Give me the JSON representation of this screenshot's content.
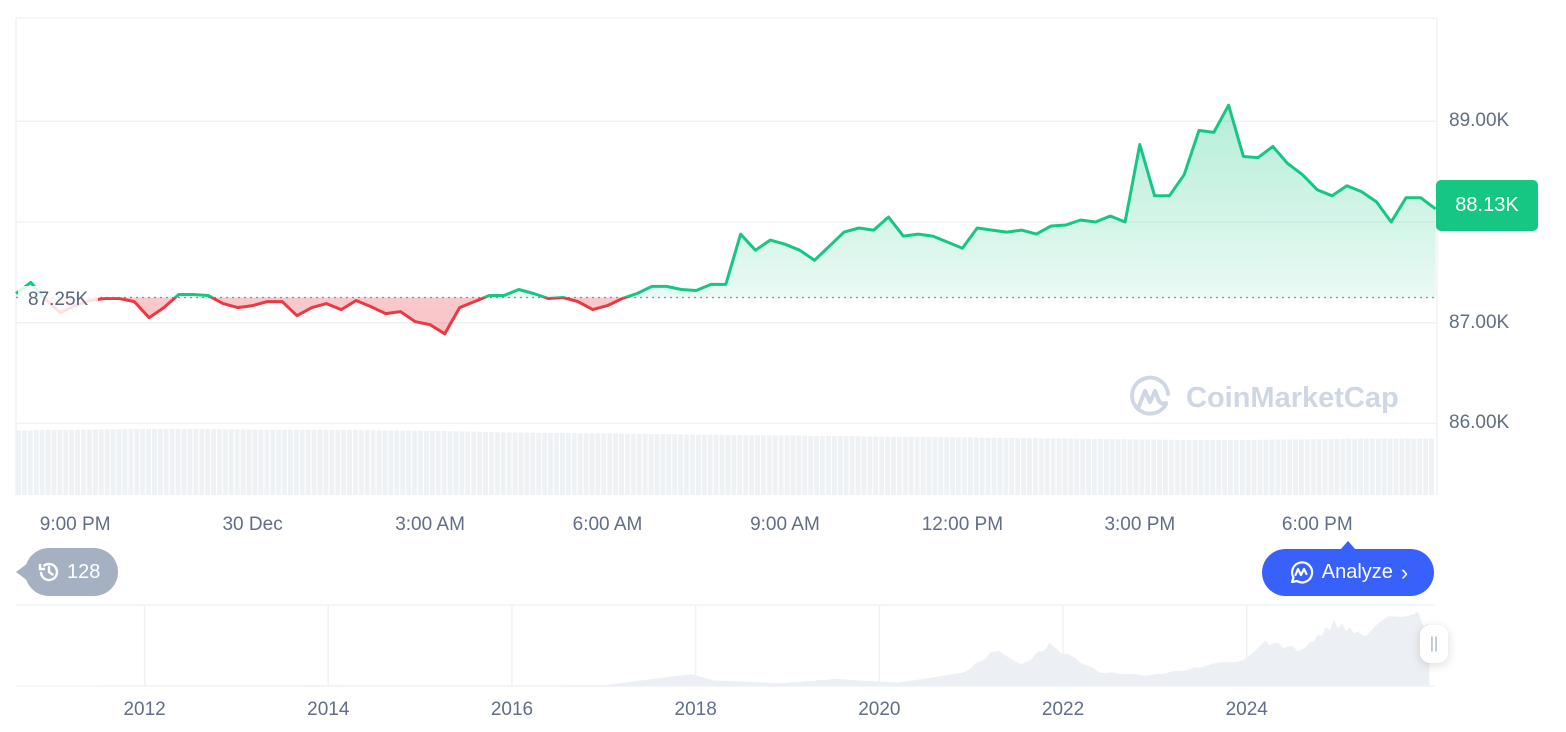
{
  "chart_data": {
    "type": "area",
    "series_start": "29 Dec 20:00",
    "interval_minutes": 15,
    "values": [
      87.29,
      87.4,
      87.23,
      87.1,
      87.17,
      87.22,
      87.24,
      87.24,
      87.21,
      87.05,
      87.15,
      87.28,
      87.28,
      87.27,
      87.19,
      87.15,
      87.17,
      87.21,
      87.21,
      87.07,
      87.15,
      87.19,
      87.13,
      87.22,
      87.16,
      87.09,
      87.11,
      87.01,
      86.98,
      86.89,
      87.15,
      87.21,
      87.27,
      87.27,
      87.33,
      87.29,
      87.24,
      87.25,
      87.21,
      87.13,
      87.17,
      87.24,
      87.29,
      87.36,
      87.36,
      87.33,
      87.32,
      87.38,
      87.38,
      87.88,
      87.72,
      87.82,
      87.78,
      87.72,
      87.62,
      87.76,
      87.9,
      87.94,
      87.92,
      88.05,
      87.86,
      87.88,
      87.86,
      87.8,
      87.74,
      87.94,
      87.92,
      87.9,
      87.92,
      87.88,
      87.96,
      87.97,
      88.02,
      88.0,
      88.06,
      88.0,
      88.77,
      88.26,
      88.26,
      88.47,
      88.91,
      88.89,
      89.16,
      88.65,
      88.64,
      88.75,
      88.58,
      88.47,
      88.32,
      88.26,
      88.36,
      88.3,
      88.2,
      88.0,
      88.24,
      88.24,
      88.13
    ],
    "unit": "K",
    "baseline": 87.25,
    "baseline_label": "87.25K",
    "current_value": 88.13,
    "current_label": "88.13K",
    "ylim": [
      85.3,
      90.2
    ],
    "yticks": [
      {
        "value": 89,
        "label": "89.00K"
      },
      {
        "value": 88,
        "label": ""
      },
      {
        "value": 87,
        "label": "87.00K"
      },
      {
        "value": 86,
        "label": "86.00K"
      }
    ],
    "xticks": [
      {
        "time": "29 Dec 21:00",
        "label": "9:00 PM"
      },
      {
        "time": "30 Dec 00:00",
        "label": "30 Dec"
      },
      {
        "time": "30 Dec 03:00",
        "label": "3:00 AM"
      },
      {
        "time": "30 Dec 06:00",
        "label": "6:00 AM"
      },
      {
        "time": "30 Dec 09:00",
        "label": "9:00 AM"
      },
      {
        "time": "30 Dec 12:00",
        "label": "12:00 PM"
      },
      {
        "time": "30 Dec 15:00",
        "label": "3:00 PM"
      },
      {
        "time": "30 Dec 18:00",
        "label": "6:00 PM"
      }
    ],
    "grid": true,
    "colors": {
      "up": "#16c784",
      "down": "#ea3943",
      "volume": "#eff2f5",
      "grid": "#eff2f5",
      "axis_text": "#616e85"
    },
    "volume_relative": [
      0.95,
      0.96,
      0.97,
      0.97,
      0.96,
      0.96,
      0.95,
      0.94,
      0.92,
      0.91,
      0.9,
      0.89,
      0.88,
      0.87,
      0.86,
      0.85,
      0.84,
      0.83,
      0.82,
      0.81,
      0.81,
      0.82,
      0.83,
      0.83
    ],
    "navigator": {
      "points": [
        [
          2010.5,
          0
        ],
        [
          2013.0,
          0.2
        ],
        [
          2013.9,
          1
        ],
        [
          2015.0,
          0.3
        ],
        [
          2017.0,
          1
        ],
        [
          2017.96,
          19
        ],
        [
          2018.2,
          9
        ],
        [
          2018.9,
          4
        ],
        [
          2019.5,
          11
        ],
        [
          2020.2,
          6
        ],
        [
          2020.9,
          20
        ],
        [
          2021.3,
          60
        ],
        [
          2021.55,
          33
        ],
        [
          2021.85,
          66
        ],
        [
          2022.4,
          22
        ],
        [
          2022.95,
          17
        ],
        [
          2023.5,
          30
        ],
        [
          2023.95,
          43
        ],
        [
          2024.2,
          71
        ],
        [
          2024.6,
          58
        ],
        [
          2024.95,
          100
        ],
        [
          2025.3,
          80
        ],
        [
          2025.55,
          108
        ],
        [
          2025.8,
          122
        ],
        [
          2025.99,
          92
        ]
      ],
      "ylim": [
        0,
        130
      ],
      "xlim": [
        2010.6,
        2026.05
      ],
      "ticks": [
        "2012",
        "2014",
        "2016",
        "2018",
        "2020",
        "2022",
        "2024"
      ]
    }
  },
  "history": {
    "count": "128",
    "icon": "history-icon"
  },
  "analyze": {
    "label": "Analyze",
    "icon": "cmc-chat-icon",
    "color": "#3861fb"
  },
  "watermark": "CoinMarketCap"
}
